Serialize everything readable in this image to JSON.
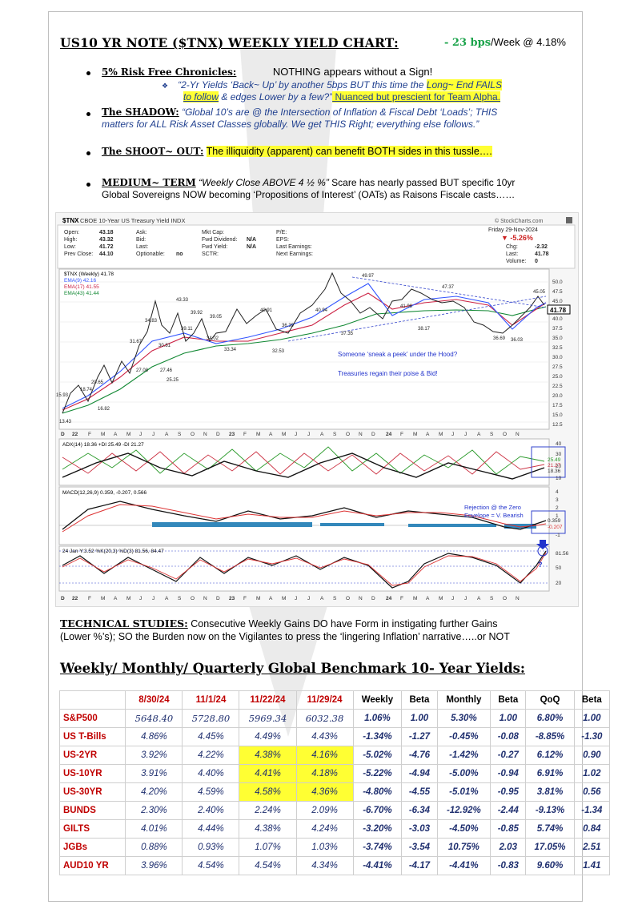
{
  "title": "US10 YR NOTE ($TNX) WEEKLY YIELD CHART:",
  "headline": {
    "change": "- 23 bps",
    "rest": "/Week @ 4.18%"
  },
  "bullets": [
    {
      "head": "5% Risk Free Chronicles:",
      "text": "NOTHING appears without a Sign!",
      "sub_quote": "“2-Yr Yields ‘Back~ Up’ by another 5bps BUT this time the ",
      "sub_hl": "Long~ End FAILS",
      "sub_line2_a": "to follow",
      "sub_line2_b": " & edges Lower by a few?”",
      "sub_line2_c": "  Nuanced but prescient for Team Alpha."
    },
    {
      "head": "The SHADOW:",
      "text": " “Global 10’s are @ the Intersection of Inflation & Fiscal Debt ‘Loads’; THIS",
      "line2": "matters for ALL Risk Asset Classes globally. We get THIS Right; everything else follows.”"
    },
    {
      "head": "The SHOOT~ OUT:",
      "text": "The illiquidity (apparent) can benefit BOTH sides in this tussle…."
    },
    {
      "head": "MEDIUM~ TERM",
      "quote": " “Weekly Close ABOVE 4 ½ %”",
      "text": "  Scare has nearly passed BUT specific 10yr",
      "line2": "Global Sovereigns NOW becoming ‘Propositions of Interest’ (OATs) as Raisons Fiscale casts……"
    }
  ],
  "chart": {
    "symbol": "$TNX",
    "name": "CBOE 10-Year US Treasury Yield INDX",
    "source": "© StockCharts.com",
    "date": "Friday  29-Nov-2024",
    "pct_change": "▼ -5.26%",
    "quote_labels": [
      "Open:",
      "High:",
      "Low:",
      "Prev Close:"
    ],
    "quote_values": [
      "43.18",
      "43.32",
      "41.72",
      "44.10"
    ],
    "mid_labels": [
      "Ask:",
      "Bid:",
      "Last:",
      "Optionable:"
    ],
    "mid_values": [
      "",
      "",
      "",
      "no"
    ],
    "cap_labels": [
      "Mkt Cap:",
      "Fwd Dividend:",
      "Fwd Yield:",
      "SCTR:"
    ],
    "cap_values": [
      "",
      "N/A",
      "N/A",
      ""
    ],
    "pe_labels": [
      "P/E:",
      "EPS:",
      "Last Earnings:",
      "Next Earnings:"
    ],
    "right_labels": [
      "Chg:",
      "Last:",
      "Volume:"
    ],
    "right_values": [
      "-2.32",
      "41.78",
      "0"
    ],
    "legend": [
      {
        "text": "$TNX (Weekly) 41.78",
        "color": "#000000"
      },
      {
        "text": "EMA(9) 42.16",
        "color": "#3355ff"
      },
      {
        "text": "EMA(17) 41.55",
        "color": "#cc2244"
      },
      {
        "text": "EMA(43) 41.44",
        "color": "#118833"
      }
    ],
    "annotations": [
      "Someone ‘sneak a peek’ under the Hood?",
      "Treasuries regain their poise & Bid!"
    ],
    "price_labels": [
      "49.97",
      "47.37",
      "45.05",
      "43.33",
      "41.98",
      "40.94",
      "40.91",
      "39.92",
      "39.11",
      "39.05",
      "38.17",
      "37.35",
      "36.69",
      "36.39",
      "36.03",
      "34.83",
      "34.02",
      "33.34",
      "32.53",
      "31.67",
      "30.81",
      "27.46",
      "27.08",
      "25.25",
      "20.65",
      "18.74",
      "16.82",
      "15.93",
      "13.43"
    ],
    "price_axis": [
      "50.0",
      "47.5",
      "45.0",
      "42.5",
      "40.0",
      "37.5",
      "35.0",
      "32.5",
      "30.0",
      "27.5",
      "25.0",
      "22.5",
      "20.0",
      "17.5",
      "15.0",
      "12.5"
    ],
    "last_box": "41.78",
    "adx_label": "ADX(14) 18.36  +DI 25.49  -DI 21.27",
    "adx_axis": [
      "40",
      "30",
      "20",
      "10"
    ],
    "adx_values": [
      "25.49",
      "21.27",
      "18.36"
    ],
    "macd_label": "MACD(12,26,9) 0.359, -0.207, 0.566",
    "macd_annotation": [
      "Rejection @ the Zero",
      "Envelope = V. Bearish"
    ],
    "macd_axis": [
      "4",
      "3",
      "2",
      "1",
      "0",
      "-1"
    ],
    "macd_values": [
      "0.359",
      "-0.207"
    ],
    "stoch_label": "24 Jan Y:3.52 %K(20,3) %D(3) 81.56, 84.47",
    "stoch_axis": [
      "80",
      "50",
      "20"
    ],
    "stoch_value": "81.56",
    "stoch_q": "?",
    "x_axis": [
      "D",
      "22",
      "F",
      "M",
      "A",
      "M",
      "J",
      "J",
      "A",
      "S",
      "O",
      "N",
      "D",
      "23",
      "F",
      "M",
      "A",
      "M",
      "J",
      "J",
      "A",
      "S",
      "O",
      "N",
      "D",
      "24",
      "F",
      "M",
      "A",
      "M",
      "J",
      "J",
      "A",
      "S",
      "O",
      "N"
    ]
  },
  "technical": {
    "head": "TECHNICAL STUDIES:",
    "text": " Consecutive Weekly Gains DO have Form in instigating further Gains",
    "line2": "(Lower %’s); SO the Burden now on the Vigilantes to press the ‘lingering Inflation’ narrative…..or NOT"
  },
  "table_title": "Weekly/ Monthly/ Quarterly Global Benchmark 10- Year Yields:",
  "table": {
    "headers": [
      "",
      "8/30/24",
      "11/1/24",
      "11/22/24",
      "11/29/24",
      "Weekly",
      "Beta",
      "Monthly",
      "Beta",
      "QoQ",
      "Beta"
    ],
    "rows": [
      [
        "S&P500",
        "5648.40",
        "5728.80",
        "5969.34",
        "6032.38",
        "1.06%",
        "1.00",
        "5.30%",
        "1.00",
        "6.80%",
        "1.00"
      ],
      [
        "US T-Bills",
        "4.86%",
        "4.45%",
        "4.49%",
        "4.43%",
        "-1.34%",
        "-1.27",
        "-0.45%",
        "-0.08",
        "-8.85%",
        "-1.30"
      ],
      [
        "US-2YR",
        "3.92%",
        "4.22%",
        "4.38%",
        "4.16%",
        "-5.02%",
        "-4.76",
        "-1.42%",
        "-0.27",
        "6.12%",
        "0.90"
      ],
      [
        "US-10YR",
        "3.91%",
        "4.40%",
        "4.41%",
        "4.18%",
        "-5.22%",
        "-4.94",
        "-5.00%",
        "-0.94",
        "6.91%",
        "1.02"
      ],
      [
        "US-30YR",
        "4.20%",
        "4.59%",
        "4.58%",
        "4.36%",
        "-4.80%",
        "-4.55",
        "-5.01%",
        "-0.95",
        "3.81%",
        "0.56"
      ],
      [
        "BUNDS",
        "2.30%",
        "2.40%",
        "2.24%",
        "2.09%",
        "-6.70%",
        "-6.34",
        "-12.92%",
        "-2.44",
        "-9.13%",
        "-1.34"
      ],
      [
        "GILTS",
        "4.01%",
        "4.44%",
        "4.38%",
        "4.24%",
        "-3.20%",
        "-3.03",
        "-4.50%",
        "-0.85",
        "5.74%",
        "0.84"
      ],
      [
        "JGBs",
        "0.88%",
        "0.93%",
        "1.07%",
        "1.03%",
        "-3.74%",
        "-3.54",
        "10.75%",
        "2.03",
        "17.05%",
        "2.51"
      ],
      [
        "AUD10 YR",
        "3.96%",
        "4.54%",
        "4.54%",
        "4.34%",
        "-4.41%",
        "-4.17",
        "-4.41%",
        "-0.83",
        "9.60%",
        "1.41"
      ]
    ],
    "highlight_rows": [
      2,
      3,
      4
    ],
    "highlight_color": "#ffff33"
  }
}
